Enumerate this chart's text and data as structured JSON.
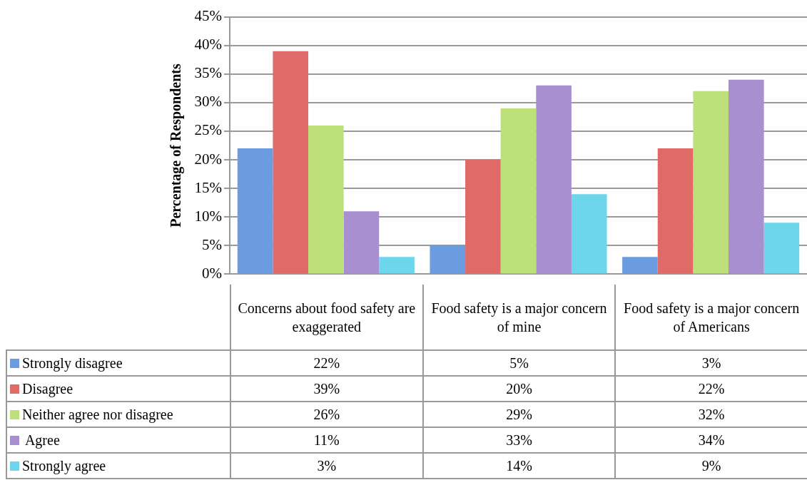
{
  "chart_data": {
    "type": "bar",
    "ylabel": "Percentage of Respondents",
    "categories": [
      "Concerns about food safety are exaggerated",
      "Food safety is a major concern of mine",
      "Food safety is a major concern of Americans"
    ],
    "series": [
      {
        "name": "Strongly disagree",
        "color": "#6b9be0",
        "values": [
          22,
          5,
          3
        ],
        "value_labels": [
          "22%",
          "5%",
          "3%"
        ]
      },
      {
        "name": "Disagree",
        "color": "#e06a68",
        "values": [
          39,
          20,
          22
        ],
        "value_labels": [
          "39%",
          "20%",
          "22%"
        ]
      },
      {
        "name": "Neither agree nor disagree",
        "color": "#bde07a",
        "values": [
          26,
          29,
          32
        ],
        "value_labels": [
          "26%",
          "29%",
          "32%"
        ]
      },
      {
        "name": " Agree",
        "color": "#a88fd0",
        "values": [
          11,
          33,
          34
        ],
        "value_labels": [
          "11%",
          "33%",
          "34%"
        ]
      },
      {
        "name": "Strongly agree",
        "color": "#6dd5ec",
        "values": [
          3,
          14,
          9
        ],
        "value_labels": [
          "3%",
          "14%",
          "9%"
        ]
      }
    ],
    "ylim": [
      0,
      45
    ],
    "yticks": [
      {
        "value": 0,
        "label": "0%"
      },
      {
        "value": 5,
        "label": "5%"
      },
      {
        "value": 10,
        "label": "10%"
      },
      {
        "value": 15,
        "label": "15%"
      },
      {
        "value": 20,
        "label": "20%"
      },
      {
        "value": 25,
        "label": "25%"
      },
      {
        "value": 30,
        "label": "30%"
      },
      {
        "value": 35,
        "label": "35%"
      },
      {
        "value": 40,
        "label": "40%"
      },
      {
        "value": 45,
        "label": "45%"
      }
    ],
    "grid": "y",
    "legend": "bottom left"
  }
}
